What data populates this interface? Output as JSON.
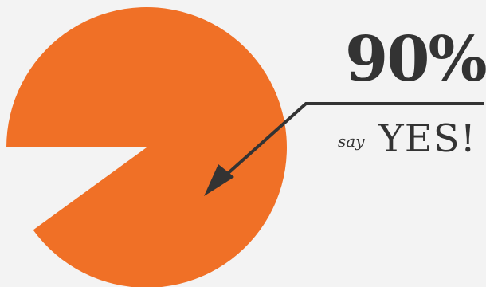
{
  "chart_data": {
    "type": "pie",
    "values": [
      90,
      10
    ],
    "highlight_index": 0,
    "visible_slices": [
      0
    ],
    "colors": {
      "slice": "#f07026",
      "background": "#f3f3f3",
      "ink": "#333333"
    },
    "annotation": {
      "value_text": "90%",
      "prefix_text": "say",
      "label_text": "YES!"
    }
  }
}
